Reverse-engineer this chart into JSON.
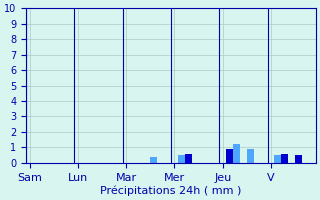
{
  "title": "",
  "xlabel": "Précipitations 24h ( mm )",
  "ylabel": "",
  "ylim": [
    0,
    10
  ],
  "yticks": [
    0,
    1,
    2,
    3,
    4,
    5,
    6,
    7,
    8,
    9,
    10
  ],
  "background_color": "#d8f5f0",
  "plot_bg_color": "#d8f5f0",
  "grid_color": "#b0c8c8",
  "bar_color_light": "#4da6ff",
  "bar_color_dark": "#0000cc",
  "day_labels": [
    "Sam",
    "Lun",
    "Mar",
    "Mer",
    "Jeu",
    "V"
  ],
  "day_positions": [
    0.5,
    1.5,
    2.5,
    3.5,
    4.5,
    5.5
  ],
  "num_bars": 42,
  "bar_values": [
    0,
    0,
    0,
    0,
    0,
    0,
    0,
    0,
    0,
    0,
    0,
    0,
    0,
    0,
    0,
    0,
    0,
    0,
    0.4,
    0,
    0,
    0,
    0.5,
    0.6,
    0,
    0,
    0,
    0,
    0,
    0.9,
    1.2,
    0,
    0.9,
    0,
    0,
    0,
    0.5,
    0.6,
    0,
    0.5,
    0,
    0
  ],
  "axis_color": "#0000aa",
  "tick_color": "#0000aa",
  "label_fontsize": 8,
  "tick_fontsize": 7
}
